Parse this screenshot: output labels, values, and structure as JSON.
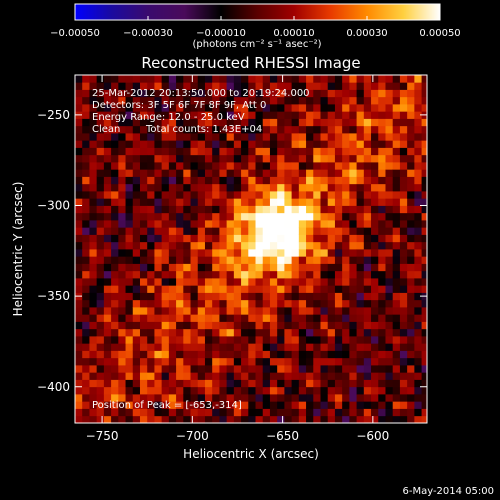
{
  "chart_data": {
    "type": "heatmap",
    "title": "Reconstructed RHESSI Image",
    "xlabel": "Heliocentric X (arcsec)",
    "ylabel": "Heliocentric Y (arcsec)",
    "xlim": [
      -765,
      -570
    ],
    "ylim": [
      -420,
      -228
    ],
    "x_ticks": [
      -750,
      -700,
      -650,
      -600
    ],
    "y_ticks": [
      -400,
      -350,
      -300,
      -250
    ],
    "x_tick_labels": [
      "−750",
      "−700",
      "−650",
      "−600"
    ],
    "y_tick_labels": [
      "−400",
      "−350",
      "−300",
      "−250"
    ],
    "colorbar": {
      "min": -0.0005,
      "max": 0.0005,
      "ticks": [
        -0.0005,
        -0.0003,
        -0.0001,
        0.0001,
        0.0003,
        0.0005
      ],
      "tick_labels": [
        "−0.00050",
        "−0.00030",
        "−0.00010",
        "0.00010",
        "0.00030",
        "0.00050"
      ],
      "unit_label": "(photons cm⁻² s⁻¹ asec⁻²)",
      "colormap": [
        "#0000ff",
        "#1a0aa0",
        "#3a0a6e",
        "#4a0a5a",
        "#000000",
        "#5a0000",
        "#a00000",
        "#e83a00",
        "#ff8a00",
        "#ffd040",
        "#ffffff"
      ]
    },
    "annotations": {
      "time": "25-Mar-2012 20:13:50.000 to 20:19:24.000",
      "detectors": "Detectors: 3F 5F 6F 7F 8F 9F, Att 0",
      "energy": "Energy Range: 12.0 - 25.0 keV",
      "method": "Clean",
      "counts": "Total counts: 1.43E+04",
      "peak": "Position of Peak = [-653,-314]"
    },
    "peak_position": [
      -653,
      -314
    ],
    "background_color": "#000000"
  },
  "footer": {
    "date": "6-May-2014 05:00"
  }
}
